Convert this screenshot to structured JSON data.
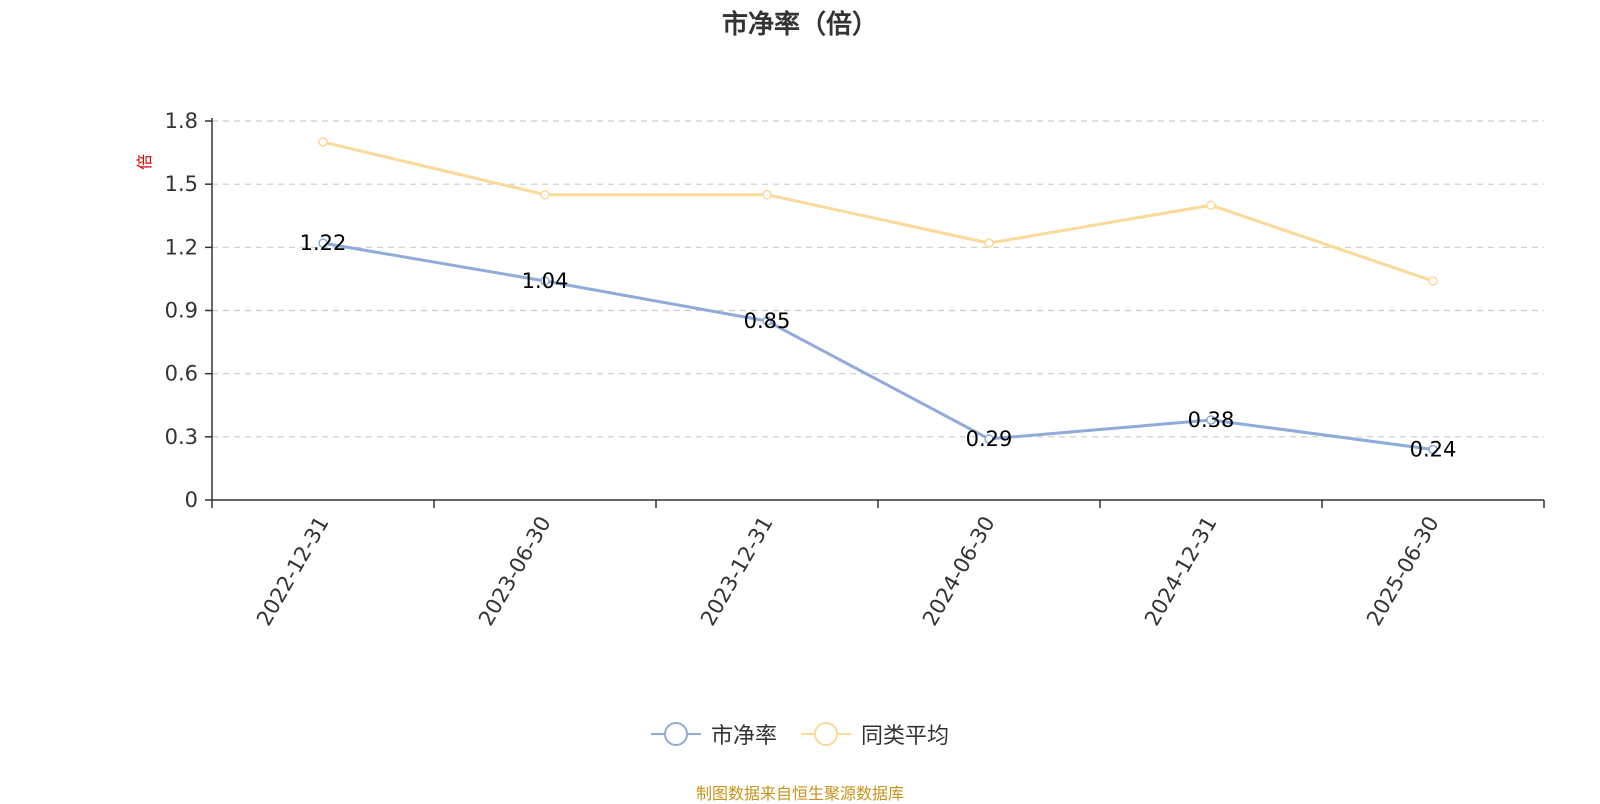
{
  "chart_data": {
    "type": "line",
    "title": "市净率（倍）",
    "ylabel": "倍",
    "xlabel": "",
    "categories": [
      "2022-12-31",
      "2023-06-30",
      "2023-12-31",
      "2024-06-30",
      "2024-12-31",
      "2025-06-30"
    ],
    "series": [
      {
        "name": "市净率",
        "values": [
          1.22,
          1.04,
          0.85,
          0.29,
          0.38,
          0.24
        ],
        "labels": [
          "1.22",
          "1.04",
          "0.85",
          "0.29",
          "0.38",
          "0.24"
        ],
        "color": "#8eabd9",
        "show_labels": true
      },
      {
        "name": "同类平均",
        "values": [
          1.7,
          1.45,
          1.45,
          1.22,
          1.4,
          1.04
        ],
        "color": "#fcd899",
        "show_labels": false
      }
    ],
    "ylim": [
      0,
      1.8
    ],
    "yticks": [
      "0",
      "0.3",
      "0.6",
      "0.9",
      "1.2",
      "1.5",
      "1.8"
    ],
    "grid": true,
    "legend_position": "bottom"
  },
  "footer": {
    "source": "制图数据来自恒生聚源数据库"
  },
  "colors": {
    "axis": "#333333",
    "grid": "#cccccc"
  }
}
